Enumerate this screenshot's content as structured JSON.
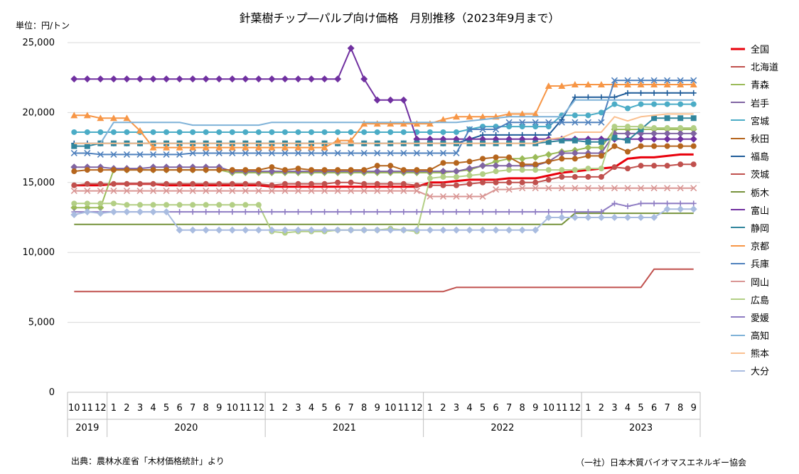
{
  "title": "針葉樹チップ―パルプ向け価格　月別推移（2023年9月まで）",
  "unit_label": "単位：円/トン",
  "source_note": "出典：農林水産省「木材価格統計」より",
  "publisher": "（一社）日本木質バイオマスエネルギー協会",
  "chart_data": {
    "type": "line",
    "title": "針葉樹チップ―パルプ向け価格　月別推移（2023年9月まで）",
    "ylabel": "単位：円/トン",
    "ylim": [
      0,
      25000
    ],
    "yticks": [
      0,
      5000,
      10000,
      15000,
      20000,
      25000
    ],
    "ytick_labels": [
      "0",
      "5,000",
      "10,000",
      "15,000",
      "20,000",
      "25,000"
    ],
    "x_months": [
      "10",
      "11",
      "12",
      "1",
      "2",
      "3",
      "4",
      "5",
      "6",
      "7",
      "8",
      "9",
      "10",
      "11",
      "12",
      "1",
      "2",
      "3",
      "4",
      "5",
      "6",
      "7",
      "8",
      "9",
      "10",
      "11",
      "12",
      "1",
      "2",
      "3",
      "4",
      "5",
      "6",
      "7",
      "8",
      "9",
      "10",
      "11",
      "12",
      "1",
      "2",
      "3",
      "4",
      "5",
      "6",
      "7",
      "8",
      "9"
    ],
    "x_years": [
      {
        "label": "2019",
        "start": 0,
        "count": 3
      },
      {
        "label": "2020",
        "start": 3,
        "count": 12
      },
      {
        "label": "2021",
        "start": 15,
        "count": 12
      },
      {
        "label": "2022",
        "start": 27,
        "count": 12
      },
      {
        "label": "2023",
        "start": 39,
        "count": 9
      }
    ],
    "grid": true,
    "legend_position": "right",
    "series": [
      {
        "name": "全国",
        "color": "#E8000B",
        "width": 3,
        "marker": "none",
        "values": [
          14800,
          14800,
          14800,
          14900,
          14900,
          14900,
          14900,
          14800,
          14800,
          14800,
          14800,
          14800,
          14800,
          14800,
          14800,
          14700,
          14700,
          14700,
          14700,
          14700,
          14700,
          14700,
          14700,
          14700,
          14700,
          14700,
          14700,
          15000,
          15000,
          15100,
          15200,
          15200,
          15200,
          15300,
          15300,
          15300,
          15500,
          15700,
          15800,
          15900,
          16000,
          16100,
          16700,
          16800,
          16800,
          16900,
          17000,
          17000
        ]
      },
      {
        "name": "北海道",
        "color": "#C0504D",
        "width": 2,
        "marker": "circle",
        "values": [
          14800,
          14900,
          14900,
          14900,
          14900,
          14900,
          14900,
          14900,
          14900,
          14900,
          14900,
          14900,
          14900,
          14900,
          14900,
          14800,
          14900,
          14900,
          14900,
          14900,
          15000,
          15000,
          14900,
          14900,
          14900,
          14900,
          14800,
          14800,
          14800,
          14800,
          14900,
          15000,
          15000,
          15000,
          15000,
          15000,
          15200,
          15400,
          15400,
          15400,
          15400,
          16100,
          16000,
          16200,
          16200,
          16200,
          16300,
          16300
        ]
      },
      {
        "name": "青森",
        "color": "#9BBB59",
        "width": 2,
        "marker": "diamond",
        "values": [
          13200,
          13200,
          13200,
          15900,
          15900,
          15900,
          15900,
          15900,
          15900,
          15900,
          15900,
          15900,
          15700,
          15700,
          15700,
          15700,
          15700,
          15700,
          15700,
          15700,
          15700,
          15700,
          15700,
          15700,
          15700,
          15700,
          15700,
          15700,
          15700,
          15800,
          15900,
          16200,
          16500,
          16700,
          16700,
          16800,
          17000,
          17200,
          17300,
          17500,
          17500,
          18800,
          18800,
          18800,
          18800,
          18800,
          18800,
          18800
        ]
      },
      {
        "name": "岩手",
        "color": "#8064A2",
        "width": 2,
        "marker": "diamond",
        "values": [
          16100,
          16100,
          16100,
          16000,
          16000,
          16000,
          16100,
          16100,
          16100,
          16100,
          16100,
          16100,
          15800,
          15800,
          15800,
          15800,
          15800,
          15800,
          15800,
          15800,
          15800,
          15800,
          15800,
          15800,
          15800,
          15800,
          15800,
          15800,
          15800,
          15800,
          16000,
          16200,
          16200,
          16200,
          16200,
          16200,
          16500,
          17100,
          17100,
          17100,
          17100,
          18500,
          18500,
          18500,
          18500,
          18500,
          18500,
          18500
        ]
      },
      {
        "name": "宮城",
        "color": "#4BACC6",
        "width": 2,
        "marker": "circle",
        "values": [
          18600,
          18600,
          18600,
          18600,
          18600,
          18600,
          18600,
          18600,
          18600,
          18600,
          18600,
          18600,
          18600,
          18600,
          18600,
          18600,
          18600,
          18600,
          18600,
          18600,
          18600,
          18600,
          18600,
          18600,
          18600,
          18600,
          18600,
          18600,
          18600,
          18600,
          18800,
          19000,
          19000,
          19000,
          19000,
          19000,
          19000,
          19800,
          19800,
          19800,
          20000,
          20600,
          20300,
          20600,
          20600,
          20600,
          20600,
          20600
        ]
      },
      {
        "name": "秋田",
        "color": "#B5651D",
        "width": 2,
        "marker": "circle",
        "values": [
          15800,
          15900,
          15900,
          15900,
          15900,
          15900,
          15900,
          15900,
          15900,
          15900,
          15900,
          15900,
          15900,
          15900,
          15900,
          16100,
          15900,
          16000,
          15900,
          15900,
          15900,
          15900,
          15900,
          16200,
          16200,
          15900,
          15900,
          15900,
          16400,
          16400,
          16500,
          16700,
          16800,
          16800,
          16300,
          16300,
          16500,
          16700,
          16700,
          16900,
          16900,
          17600,
          17200,
          17600,
          17600,
          17600,
          17600,
          17600
        ]
      },
      {
        "name": "福島",
        "color": "#1F5C99",
        "width": 2,
        "marker": "plus",
        "values": [
          17800,
          17800,
          17800,
          17800,
          17800,
          17800,
          17800,
          17800,
          17800,
          17800,
          17800,
          17800,
          17800,
          17800,
          17800,
          17800,
          17800,
          17800,
          17800,
          17800,
          17800,
          17800,
          17800,
          17800,
          17800,
          17800,
          17800,
          17800,
          17800,
          17800,
          18100,
          18400,
          18400,
          18400,
          18400,
          18400,
          18400,
          19500,
          21100,
          21100,
          21100,
          21100,
          21400,
          21400,
          21400,
          21400,
          21400,
          21400
        ]
      },
      {
        "name": "茨城",
        "color": "#C0504D",
        "width": 2,
        "marker": "none",
        "values": [
          7200,
          7200,
          7200,
          7200,
          7200,
          7200,
          7200,
          7200,
          7200,
          7200,
          7200,
          7200,
          7200,
          7200,
          7200,
          7200,
          7200,
          7200,
          7200,
          7200,
          7200,
          7200,
          7200,
          7200,
          7200,
          7200,
          7200,
          7200,
          7200,
          7500,
          7500,
          7500,
          7500,
          7500,
          7500,
          7500,
          7500,
          7500,
          7500,
          7500,
          7500,
          7500,
          7500,
          7500,
          8800,
          8800,
          8800,
          8800
        ]
      },
      {
        "name": "栃木",
        "color": "#77933C",
        "width": 2,
        "marker": "none",
        "values": [
          12000,
          12000,
          12000,
          12000,
          12000,
          12000,
          12000,
          12000,
          12000,
          12000,
          12000,
          12000,
          12000,
          12000,
          12000,
          12000,
          12000,
          12000,
          12000,
          12000,
          12000,
          12000,
          12000,
          12000,
          12000,
          12000,
          12000,
          12000,
          12000,
          12000,
          12000,
          12000,
          12000,
          12000,
          12000,
          12000,
          12000,
          12000,
          12800,
          12800,
          12800,
          12800,
          12800,
          12800,
          12800,
          12800,
          12800,
          12800
        ]
      },
      {
        "name": "富山",
        "color": "#7030A0",
        "width": 2,
        "marker": "diamond",
        "values": [
          22400,
          22400,
          22400,
          22400,
          22400,
          22400,
          22400,
          22400,
          22400,
          22400,
          22400,
          22400,
          22400,
          22400,
          22400,
          22400,
          22400,
          22400,
          22400,
          22400,
          22400,
          24600,
          22400,
          20900,
          20900,
          20900,
          18100,
          18100,
          18100,
          18100,
          18100,
          18100,
          18100,
          18100,
          18100,
          18100,
          18100,
          18100,
          18100,
          18100,
          18100,
          18100,
          18100,
          18100,
          18100,
          18100,
          18100,
          18100
        ]
      },
      {
        "name": "静岡",
        "color": "#31859C",
        "width": 2,
        "marker": "square",
        "values": [
          17600,
          17600,
          17800,
          17800,
          17800,
          17800,
          17800,
          17800,
          17800,
          17800,
          17800,
          17800,
          17800,
          17800,
          17800,
          17800,
          17800,
          17800,
          17800,
          17800,
          17800,
          17800,
          17800,
          17800,
          17800,
          17800,
          17800,
          17800,
          17800,
          17800,
          17800,
          17800,
          17800,
          17800,
          17800,
          17800,
          17900,
          18000,
          18000,
          17900,
          17900,
          18200,
          18000,
          18800,
          19600,
          19600,
          19600,
          19600
        ]
      },
      {
        "name": "京都",
        "color": "#F79646",
        "width": 2,
        "marker": "triangle",
        "values": [
          19800,
          19800,
          19600,
          19600,
          19600,
          18700,
          17500,
          17500,
          17500,
          17500,
          17500,
          17500,
          17500,
          17500,
          17500,
          17500,
          17500,
          17500,
          17500,
          17500,
          18000,
          18000,
          19200,
          19200,
          19200,
          19200,
          19200,
          19200,
          19500,
          19700,
          19700,
          19700,
          19700,
          19900,
          19900,
          19900,
          21900,
          21900,
          22000,
          22000,
          22000,
          22000,
          22000,
          22000,
          22000,
          22000,
          22000,
          22000
        ]
      },
      {
        "name": "兵庫",
        "color": "#4F81BD",
        "width": 2,
        "marker": "x",
        "values": [
          17100,
          17100,
          17000,
          17000,
          17000,
          17000,
          17000,
          17000,
          17000,
          17100,
          17100,
          17100,
          17100,
          17100,
          17100,
          17100,
          17100,
          17100,
          17100,
          17100,
          17100,
          17100,
          17100,
          17100,
          17100,
          17100,
          17100,
          17100,
          17100,
          17100,
          18800,
          18800,
          18800,
          19300,
          19300,
          19300,
          19300,
          19300,
          19300,
          19300,
          19300,
          22300,
          22300,
          22300,
          22300,
          22300,
          22300,
          22300
        ]
      },
      {
        "name": "岡山",
        "color": "#D99694",
        "width": 2,
        "marker": "x",
        "values": [
          14400,
          14400,
          14400,
          14400,
          14400,
          14400,
          14400,
          14400,
          14400,
          14400,
          14400,
          14400,
          14400,
          14400,
          14400,
          14400,
          14400,
          14400,
          14400,
          14400,
          14400,
          14400,
          14400,
          14400,
          14400,
          14400,
          14400,
          14000,
          14000,
          14000,
          14000,
          14000,
          14500,
          14500,
          14600,
          14600,
          14600,
          14600,
          14600,
          14600,
          14600,
          14600,
          14600,
          14600,
          14600,
          14600,
          14600,
          14600
        ]
      },
      {
        "name": "広島",
        "color": "#B3CF85",
        "width": 2,
        "marker": "circle",
        "values": [
          13500,
          13500,
          13500,
          13500,
          13400,
          13400,
          13400,
          13400,
          13400,
          13400,
          13400,
          13400,
          13400,
          13400,
          13400,
          11500,
          11400,
          11500,
          11500,
          11500,
          11600,
          11600,
          11600,
          11600,
          11700,
          11600,
          11500,
          15300,
          15400,
          15400,
          15500,
          15600,
          15800,
          15900,
          15900,
          15900,
          15900,
          15900,
          15900,
          16000,
          16000,
          19000,
          19000,
          19000,
          18900,
          18900,
          18900,
          18900
        ]
      },
      {
        "name": "愛媛",
        "color": "#8E7CC3",
        "width": 2,
        "marker": "plus",
        "values": [
          12900,
          12900,
          12900,
          12900,
          12900,
          12900,
          12900,
          12900,
          12900,
          12900,
          12900,
          12900,
          12900,
          12900,
          12900,
          12900,
          12900,
          12900,
          12900,
          12900,
          12900,
          12900,
          12900,
          12900,
          12900,
          12900,
          12900,
          12900,
          12900,
          12900,
          12900,
          12900,
          12900,
          12900,
          12900,
          12900,
          12900,
          12900,
          12900,
          12900,
          12900,
          13500,
          13300,
          13500,
          13500,
          13500,
          13500,
          13500
        ]
      },
      {
        "name": "高知",
        "color": "#7FB2D8",
        "width": 2,
        "marker": "none",
        "values": [
          17800,
          17800,
          17800,
          19300,
          19300,
          19300,
          19300,
          19300,
          19300,
          19100,
          19100,
          19100,
          19100,
          19100,
          19100,
          19300,
          19300,
          19300,
          19300,
          19300,
          19300,
          19300,
          19300,
          19300,
          19300,
          19300,
          19300,
          19300,
          19300,
          19300,
          19400,
          19500,
          19600,
          19700,
          19700,
          19700,
          19700,
          19700,
          20900,
          20900,
          20900,
          20900,
          20900,
          20900,
          20900,
          20900,
          20900,
          20900
        ]
      },
      {
        "name": "熊本",
        "color": "#FAC090",
        "width": 2,
        "marker": "none",
        "values": [
          17800,
          17800,
          17800,
          17800,
          17800,
          17800,
          17800,
          17800,
          17800,
          17800,
          17800,
          17800,
          17800,
          17800,
          17800,
          17800,
          17800,
          17800,
          17800,
          17800,
          17800,
          17800,
          17800,
          17800,
          17800,
          17800,
          17800,
          17800,
          17800,
          17800,
          17800,
          17800,
          17800,
          17800,
          17800,
          17800,
          18100,
          18200,
          18600,
          18600,
          18600,
          19700,
          19400,
          19700,
          19800,
          19900,
          19900,
          19900
        ]
      },
      {
        "name": "大分",
        "color": "#A9BCE0",
        "width": 2,
        "marker": "diamond",
        "values": [
          12700,
          12900,
          12800,
          12900,
          12900,
          12900,
          12900,
          12900,
          11600,
          11600,
          11600,
          11600,
          11600,
          11600,
          11600,
          11600,
          11600,
          11600,
          11600,
          11600,
          11600,
          11600,
          11600,
          11600,
          11600,
          11600,
          11600,
          11600,
          11600,
          11600,
          11600,
          11600,
          11600,
          11600,
          11600,
          11600,
          12500,
          12500,
          12500,
          12500,
          12500,
          12500,
          12500,
          12500,
          12500,
          13100,
          13100,
          13100
        ]
      }
    ]
  }
}
